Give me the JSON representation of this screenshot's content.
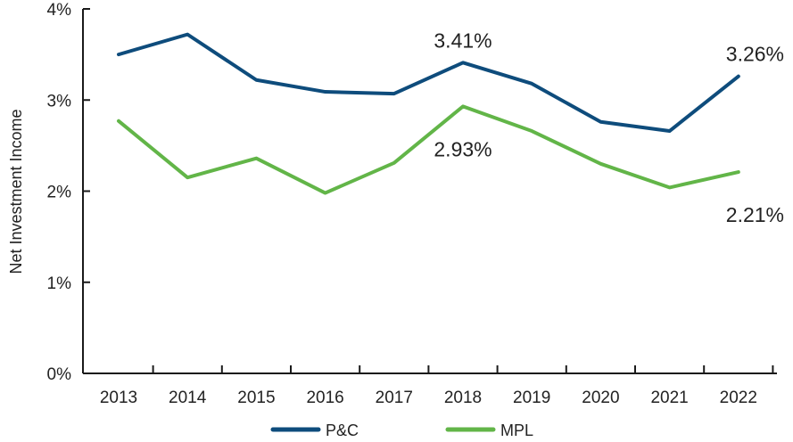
{
  "chart_data": {
    "type": "line",
    "ylabel": "Net Investment Income",
    "xlabel": "",
    "categories": [
      "2013",
      "2014",
      "2015",
      "2016",
      "2017",
      "2018",
      "2019",
      "2020",
      "2021",
      "2022"
    ],
    "y_ticks": [
      "0%",
      "1%",
      "2%",
      "3%",
      "4%"
    ],
    "ylim": [
      0,
      4
    ],
    "grid": false,
    "legend_position": "bottom",
    "series": [
      {
        "name": "P&C",
        "color": "#0e4c7c",
        "values": [
          3.5,
          3.72,
          3.22,
          3.09,
          3.07,
          3.41,
          3.18,
          2.76,
          2.66,
          3.26
        ],
        "annotations": [
          {
            "index": 5,
            "text": "3.41%"
          },
          {
            "index": 9,
            "text": "3.26%"
          }
        ]
      },
      {
        "name": "MPL",
        "color": "#62b548",
        "values": [
          2.77,
          2.15,
          2.36,
          1.98,
          2.31,
          2.93,
          2.66,
          2.3,
          2.04,
          2.21
        ],
        "annotations": [
          {
            "index": 5,
            "text": "2.93%"
          },
          {
            "index": 9,
            "text": "2.21%"
          }
        ]
      }
    ]
  }
}
